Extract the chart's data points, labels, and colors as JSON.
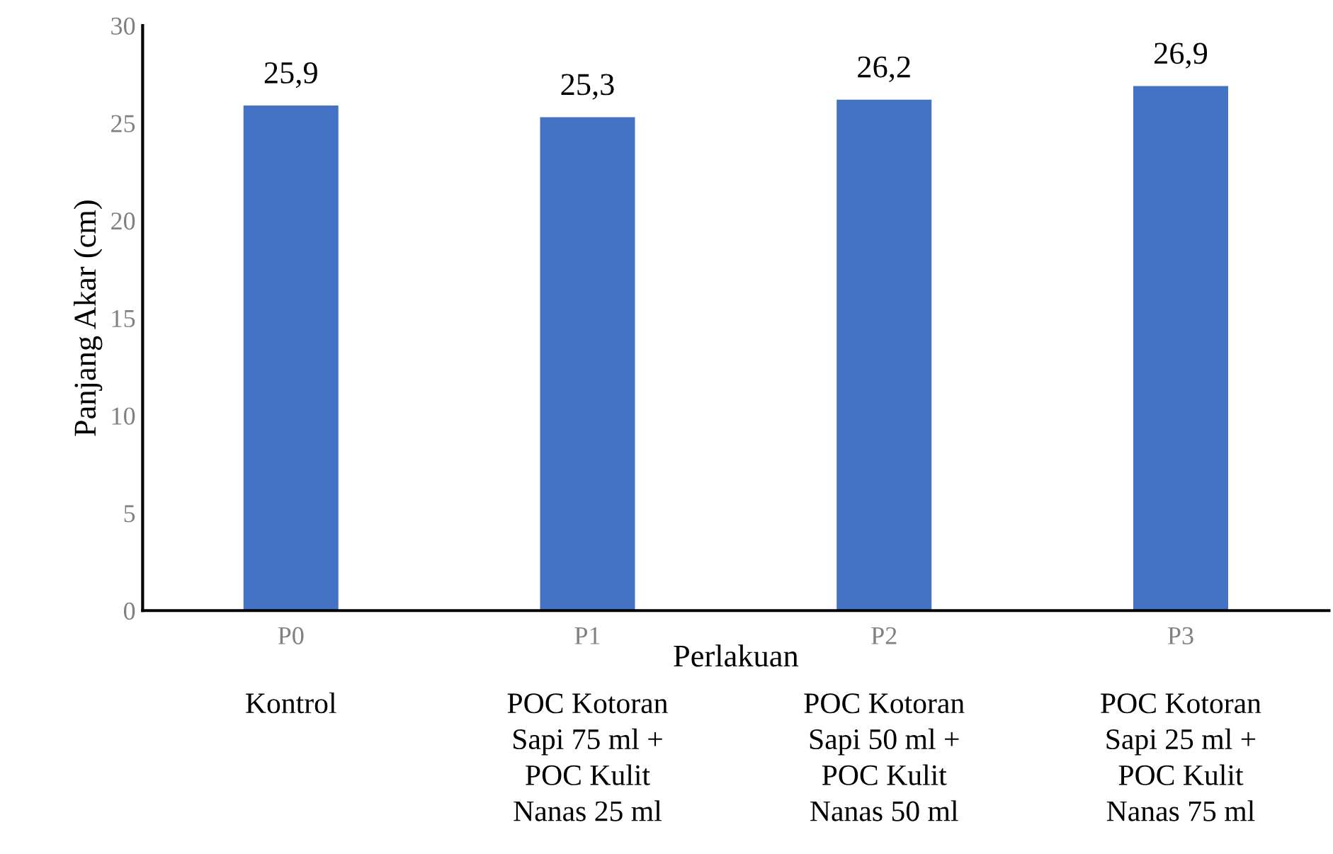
{
  "chart_data": {
    "type": "bar",
    "categories": [
      "P0\nKontrol",
      "P1\nPOC Kotoran\nSapi 75 ml +\nPOC Kulit\nNanas 25 ml",
      "P2\nPOC Kotoran\nSapi 50 ml +\nPOC Kulit\nNanas 50 ml",
      "P3\nPOC Kotoran\nSapi 25 ml +\nPOC Kulit\nNanas 75 ml"
    ],
    "values": [
      25.9,
      25.3,
      26.2,
      26.9
    ],
    "value_labels": [
      "25,9",
      "25,3",
      "26,2",
      "26,9"
    ],
    "color": "#4472c4",
    "xlabel": "Perlakuan",
    "ylabel": "Panjang Akar (cm)",
    "ylim": [
      0,
      30
    ],
    "yticks": [
      0,
      5,
      10,
      15,
      20,
      25,
      30
    ],
    "grid": false,
    "legend": false
  }
}
